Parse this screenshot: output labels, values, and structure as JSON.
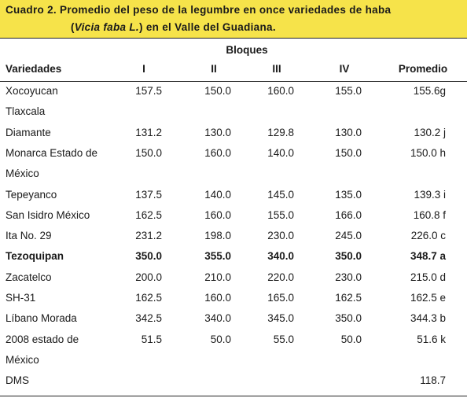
{
  "caption": {
    "line1": "Cuadro 2. Promedio del peso de la legumbre en  once variedades de    haba",
    "line2_open": "(",
    "line2_italic": "Vicia faba L.",
    "line2_rest": ") en el Valle del Guadiana."
  },
  "table": {
    "group_header": "Bloques",
    "headers": [
      "Variedades",
      "I",
      "II",
      "III",
      "IV",
      "Promedio"
    ],
    "rows": [
      {
        "variety": "Xocoyucan",
        "v": [
          "157.5",
          "150.0",
          "160.0",
          "155.0"
        ],
        "avg": "155.6g"
      },
      {
        "variety": "Tlaxcala",
        "v": [
          "",
          "",
          "",
          ""
        ],
        "avg": ""
      },
      {
        "variety": "Diamante",
        "v": [
          "131.2",
          "130.0",
          "129.8",
          "130.0"
        ],
        "avg": "130.2 j"
      },
      {
        "variety": "Monarca Estado de",
        "v": [
          "150.0",
          "160.0",
          "140.0",
          "150.0"
        ],
        "avg": "150.0 h"
      },
      {
        "variety": "México",
        "v": [
          "",
          "",
          "",
          ""
        ],
        "avg": ""
      },
      {
        "variety": "Tepeyanco",
        "v": [
          "137.5",
          "140.0",
          "145.0",
          "135.0"
        ],
        "avg": "139.3 i"
      },
      {
        "variety": "San Isidro México",
        "v": [
          "162.5",
          "160.0",
          "155.0",
          "166.0"
        ],
        "avg": "160.8 f"
      },
      {
        "variety": "Ita No. 29",
        "v": [
          "231.2",
          "198.0",
          "230.0",
          "245.0"
        ],
        "avg": "226.0 c"
      },
      {
        "variety": "Tezoquipan",
        "v": [
          "350.0",
          "355.0",
          "340.0",
          "350.0"
        ],
        "avg": "348.7 a",
        "bold": true
      },
      {
        "variety": "Zacatelco",
        "v": [
          "200.0",
          "210.0",
          "220.0",
          "230.0"
        ],
        "avg": "215.0 d"
      },
      {
        "variety": "SH-31",
        "v": [
          "162.5",
          "160.0",
          "165.0",
          "162.5"
        ],
        "avg": "162.5 e"
      },
      {
        "variety": "Líbano Morada",
        "v": [
          "342.5",
          "340.0",
          "345.0",
          "350.0"
        ],
        "avg": "344.3 b"
      },
      {
        "variety": "2008 estado de",
        "v": [
          "51.5",
          "50.0",
          "55.0",
          "50.0"
        ],
        "avg": "51.6 k"
      },
      {
        "variety": "México",
        "v": [
          "",
          "",
          "",
          ""
        ],
        "avg": ""
      },
      {
        "variety": "DMS",
        "v": [
          "",
          "",
          "",
          ""
        ],
        "avg": "118.7"
      }
    ]
  },
  "colors": {
    "caption_bg": "#f6e34a",
    "text": "#1a1a1a",
    "rule": "#222222"
  }
}
